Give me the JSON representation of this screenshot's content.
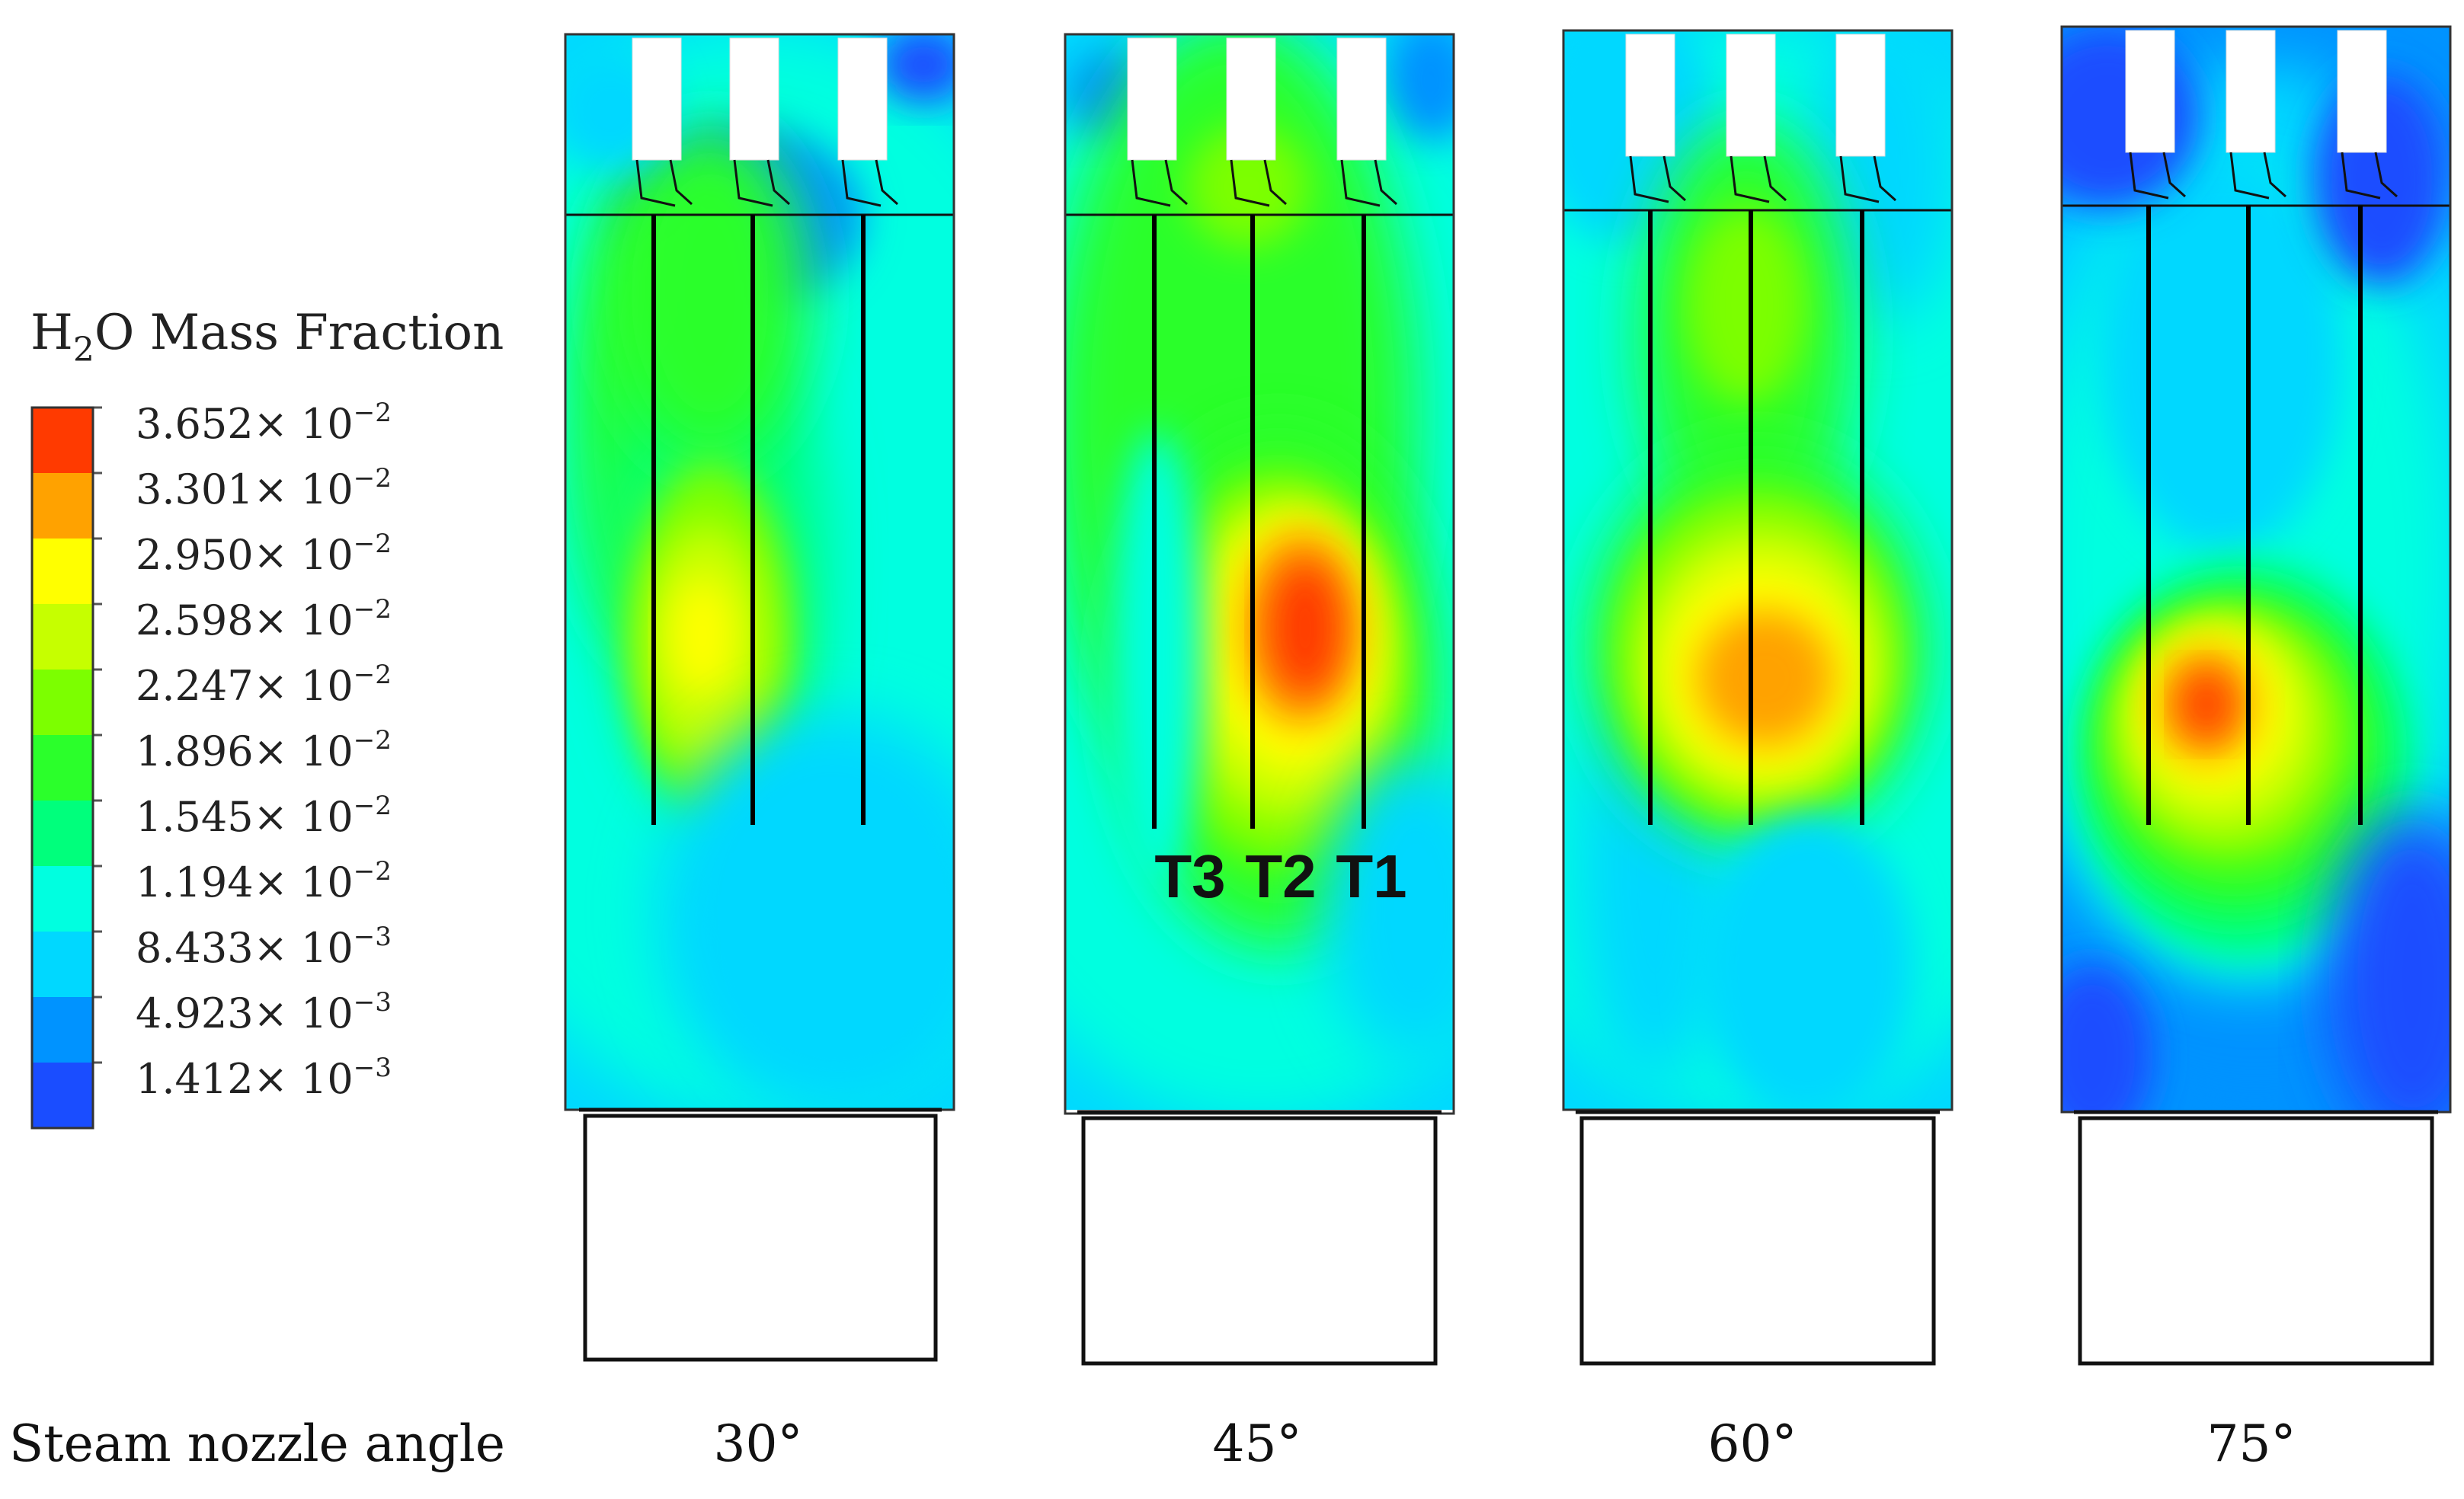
{
  "legend": {
    "title_main": "H",
    "title_sub": "2",
    "title_rest": "O Mass Fraction",
    "bands": [
      {
        "value": "3.652",
        "exp": "−2",
        "color": "#ff3a00"
      },
      {
        "value": "3.301",
        "exp": "−2",
        "color": "#ffa200"
      },
      {
        "value": "2.950",
        "exp": "−2",
        "color": "#ffff00"
      },
      {
        "value": "2.598",
        "exp": "−2",
        "color": "#c6ff00"
      },
      {
        "value": "2.247",
        "exp": "−2",
        "color": "#7cff00"
      },
      {
        "value": "1.896",
        "exp": "−2",
        "color": "#2bff2b"
      },
      {
        "value": "1.545",
        "exp": "−2",
        "color": "#00ff7c"
      },
      {
        "value": "1.194",
        "exp": "−2",
        "color": "#00ffe0"
      },
      {
        "value": "8.433",
        "exp": "−3",
        "color": "#00d8ff"
      },
      {
        "value": "4.923",
        "exp": "−3",
        "color": "#0093ff"
      },
      {
        "value": "1.412",
        "exp": "−3",
        "color": "#1a4dff"
      }
    ],
    "times_sign": "× 10"
  },
  "row_label": "Steam nozzle angle",
  "panels": [
    {
      "angle": "30°"
    },
    {
      "angle": "45°",
      "probe_labels": [
        "T3",
        "T2",
        "T1"
      ]
    },
    {
      "angle": "60°"
    },
    {
      "angle": "75°"
    }
  ]
}
